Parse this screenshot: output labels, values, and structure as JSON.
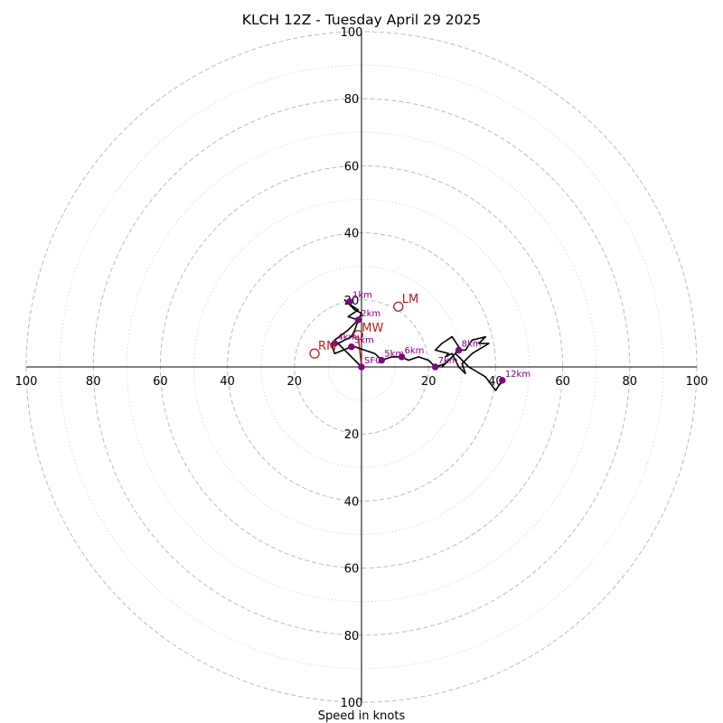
{
  "chart_data": {
    "type": "hodograph",
    "title": "KLCH 12Z - Tuesday April 29 2025",
    "xlabel": "Speed in knots",
    "range": [
      -100,
      100
    ],
    "rings_major": [
      20,
      40,
      60,
      80,
      100
    ],
    "rings_minor": [
      10,
      30,
      50,
      70,
      90
    ],
    "tick_labels": {
      "x": [
        {
          "v": -100,
          "t": "100"
        },
        {
          "v": -80,
          "t": "80"
        },
        {
          "v": -60,
          "t": "60"
        },
        {
          "v": -40,
          "t": "40"
        },
        {
          "v": -20,
          "t": "20"
        },
        {
          "v": 20,
          "t": "20"
        },
        {
          "v": 40,
          "t": "40"
        },
        {
          "v": 60,
          "t": "60"
        },
        {
          "v": 80,
          "t": "80"
        },
        {
          "v": 100,
          "t": "100"
        }
      ],
      "y": [
        {
          "v": 100,
          "t": "100"
        },
        {
          "v": 80,
          "t": "80"
        },
        {
          "v": 60,
          "t": "60"
        },
        {
          "v": 40,
          "t": "40"
        },
        {
          "v": 20,
          "t": "20"
        },
        {
          "v": -20,
          "t": "20"
        },
        {
          "v": -40,
          "t": "40"
        },
        {
          "v": -60,
          "t": "60"
        },
        {
          "v": -80,
          "t": "80"
        },
        {
          "v": -100,
          "t": "100"
        }
      ]
    },
    "trace": [
      [
        0,
        0
      ],
      [
        -8,
        8
      ],
      [
        -4,
        11
      ],
      [
        -1,
        14
      ],
      [
        -4,
        15
      ],
      [
        -1,
        17
      ],
      [
        -4,
        19
      ],
      [
        -5,
        20
      ],
      [
        -3,
        18
      ],
      [
        -2,
        17
      ],
      [
        0,
        16
      ],
      [
        -1,
        14
      ],
      [
        -2,
        11
      ],
      [
        -3,
        9
      ],
      [
        -5,
        8
      ],
      [
        -7,
        7
      ],
      [
        -9,
        7
      ],
      [
        -8,
        4
      ],
      [
        -3,
        6
      ],
      [
        -2,
        6
      ],
      [
        4,
        4
      ],
      [
        6,
        2
      ],
      [
        9,
        3
      ],
      [
        12,
        3
      ],
      [
        14,
        2
      ],
      [
        17,
        3
      ],
      [
        20,
        2
      ],
      [
        22,
        0
      ],
      [
        25,
        1
      ],
      [
        24,
        0
      ],
      [
        27,
        3
      ],
      [
        29,
        5
      ],
      [
        31,
        5
      ],
      [
        33,
        8
      ],
      [
        37,
        9
      ],
      [
        35,
        7
      ],
      [
        38,
        7
      ],
      [
        33,
        4
      ],
      [
        30,
        1
      ],
      [
        31,
        -2
      ],
      [
        30,
        -1
      ],
      [
        29,
        0
      ],
      [
        27,
        4
      ],
      [
        25,
        3
      ],
      [
        26,
        4
      ],
      [
        22,
        5
      ],
      [
        24,
        7
      ],
      [
        27,
        9
      ],
      [
        29,
        6
      ],
      [
        28,
        4
      ],
      [
        32,
        0
      ],
      [
        37,
        -3
      ],
      [
        40,
        -7
      ],
      [
        42,
        -4
      ]
    ],
    "height_markers": [
      {
        "label": "1km",
        "u": -3.5,
        "v": 19.5
      },
      {
        "label": "2km",
        "u": -1,
        "v": 14
      },
      {
        "label": "3km",
        "u": -3,
        "v": 6
      },
      {
        "label": "4km",
        "u": -8,
        "v": 7
      },
      {
        "label": "5km",
        "u": 6,
        "v": 2
      },
      {
        "label": "6km",
        "u": 12,
        "v": 3
      },
      {
        "label": "7km",
        "u": 22,
        "v": 0
      },
      {
        "label": "8km",
        "u": 29,
        "v": 5
      },
      {
        "label": "12km",
        "u": 42,
        "v": -4
      },
      {
        "label": "SFC",
        "u": 0,
        "v": 0
      }
    ],
    "storm_motions": [
      {
        "label": "LM",
        "u": 11,
        "v": 18
      },
      {
        "label": "MW",
        "u": -1,
        "v": 9.5
      },
      {
        "label": "RM",
        "u": -14,
        "v": 4
      }
    ],
    "shear_vector": [
      [
        0,
        0
      ],
      [
        -1,
        9.5
      ]
    ],
    "colors": {
      "trace": "#000000",
      "marker": "#800080",
      "storm": "#b22222",
      "grid": "#bbbbbb"
    }
  }
}
